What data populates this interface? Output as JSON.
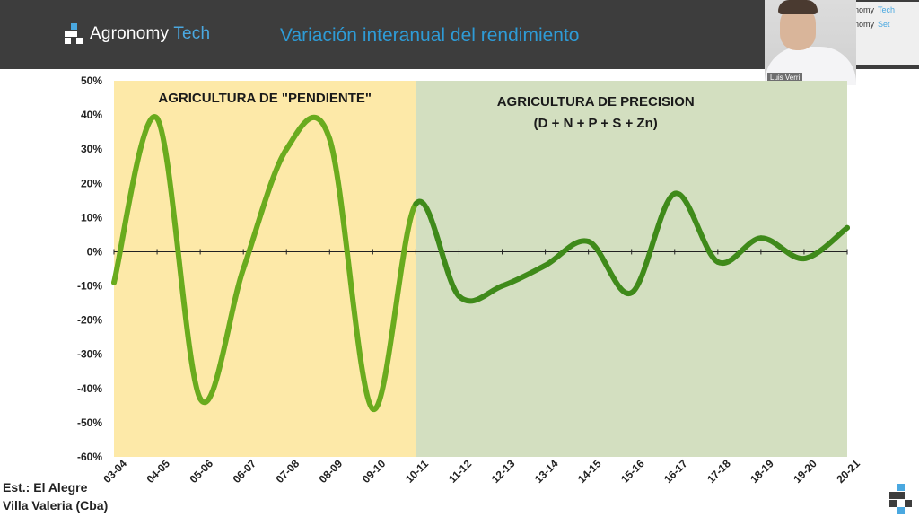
{
  "header": {
    "logo_text": "Agronomy",
    "logo_accent": "Tech",
    "title": "Variación interanual del rendimiento"
  },
  "webcam": {
    "name": "Luis Verri"
  },
  "side_brand": {
    "line1": "Agronomy",
    "line1_accent": "Tech",
    "line2": "Agronomy",
    "line2_accent": "Set"
  },
  "footer": {
    "station_line1": "Est.: El Alegre",
    "station_line2": "Villa Valeria (Cba)"
  },
  "colors": {
    "header_bg": "#3d3d3d",
    "accent_blue": "#2e9bd6",
    "region_yellow": "#fde9a8",
    "region_green": "#d3dfc0",
    "line_early": "#6aab1e",
    "line_late": "#3f8a1a"
  },
  "chart_data": {
    "type": "line",
    "categories": [
      "03-04",
      "04-05",
      "05-06",
      "06-07",
      "07-08",
      "08-09",
      "09-10",
      "10-11",
      "11-12",
      "12-13",
      "13-14",
      "14-15",
      "15-16",
      "16-17",
      "17-18",
      "18-19",
      "19-20",
      "20-21"
    ],
    "series": [
      {
        "values": [
          -9,
          39,
          -43,
          -5,
          30,
          33,
          -46,
          14,
          -13,
          -10,
          -4,
          3,
          -12,
          17,
          -3,
          4,
          -2,
          7
        ]
      }
    ],
    "regions": [
      {
        "label": "AGRICULTURA DE \"PENDIENTE\"",
        "sublabel": "",
        "from": "03-04",
        "to": "10-11"
      },
      {
        "label": "AGRICULTURA DE PRECISION",
        "sublabel": "(D + N + P + S + Zn)",
        "from": "10-11",
        "to": "20-21"
      }
    ],
    "yticks": [
      "50%",
      "40%",
      "30%",
      "20%",
      "10%",
      "0%",
      "-10%",
      "-20%",
      "-30%",
      "-40%",
      "-50%",
      "-60%"
    ],
    "ylim": [
      -60,
      50
    ],
    "ylabel": "",
    "xlabel": "",
    "grid": false,
    "legend": "none"
  }
}
